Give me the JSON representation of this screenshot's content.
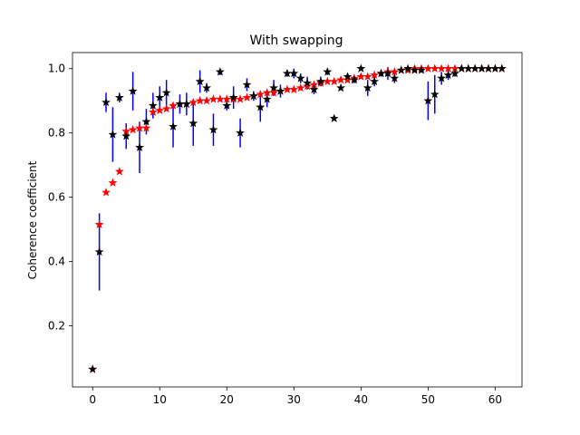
{
  "chart_data": {
    "type": "scatter",
    "title": "With swapping",
    "xlabel": "",
    "ylabel": "Coherence coefficient",
    "xlim": [
      -3,
      64
    ],
    "ylim": [
      0.01,
      1.05
    ],
    "xticks": [
      0,
      10,
      20,
      30,
      40,
      50,
      60
    ],
    "yticks": [
      0.2,
      0.4,
      0.6,
      0.8,
      1.0
    ],
    "ytick_labels": [
      "0.2",
      "0.4",
      "0.6",
      "0.8",
      "1.0"
    ],
    "grid": false,
    "colors": {
      "reference": "#ff0000",
      "measured": "#000000",
      "errorbar": "#0000ff"
    },
    "series": [
      {
        "marker": "star",
        "color": "#ff0000",
        "x": [
          0,
          1,
          2,
          3,
          4,
          5,
          6,
          7,
          8,
          9,
          10,
          11,
          12,
          13,
          14,
          15,
          16,
          17,
          18,
          19,
          20,
          21,
          22,
          23,
          24,
          25,
          26,
          27,
          28,
          29,
          30,
          31,
          32,
          33,
          34,
          35,
          36,
          37,
          38,
          39,
          40,
          41,
          42,
          43,
          44,
          45,
          46,
          47,
          48,
          49,
          50,
          51,
          52,
          53,
          54,
          55,
          56,
          57,
          58,
          59,
          60,
          61
        ],
        "y": [
          0.065,
          0.515,
          0.615,
          0.645,
          0.68,
          0.805,
          0.81,
          0.815,
          0.815,
          0.865,
          0.87,
          0.875,
          0.885,
          0.89,
          0.89,
          0.895,
          0.9,
          0.9,
          0.905,
          0.905,
          0.905,
          0.905,
          0.905,
          0.91,
          0.915,
          0.92,
          0.925,
          0.925,
          0.93,
          0.935,
          0.935,
          0.94,
          0.945,
          0.95,
          0.955,
          0.96,
          0.96,
          0.965,
          0.965,
          0.97,
          0.975,
          0.975,
          0.98,
          0.985,
          0.99,
          0.99,
          0.995,
          0.995,
          1.0,
          1.0,
          1.0,
          1.0,
          1.0,
          1.0,
          1.0,
          1.0,
          1.0,
          1.0,
          1.0,
          1.0,
          1.0,
          1.0
        ]
      },
      {
        "marker": "star",
        "color": "#000000",
        "x": [
          0,
          1,
          2,
          3,
          4,
          5,
          6,
          7,
          8,
          9,
          10,
          11,
          12,
          13,
          14,
          15,
          16,
          17,
          18,
          19,
          20,
          21,
          22,
          23,
          24,
          25,
          26,
          27,
          28,
          29,
          30,
          31,
          32,
          33,
          34,
          35,
          36,
          37,
          38,
          39,
          40,
          41,
          42,
          43,
          44,
          45,
          46,
          47,
          48,
          49,
          50,
          51,
          52,
          53,
          54,
          55,
          56,
          57,
          58,
          59,
          60,
          61
        ],
        "y": [
          0.065,
          0.43,
          0.895,
          0.795,
          0.91,
          0.79,
          0.93,
          0.755,
          0.835,
          0.885,
          0.91,
          0.925,
          0.82,
          0.89,
          0.89,
          0.83,
          0.96,
          0.94,
          0.81,
          0.99,
          0.885,
          0.91,
          0.8,
          0.95,
          0.915,
          0.88,
          0.905,
          0.94,
          0.93,
          0.985,
          0.985,
          0.97,
          0.955,
          0.935,
          0.96,
          0.99,
          0.845,
          0.94,
          0.975,
          0.965,
          1.0,
          0.94,
          0.96,
          0.985,
          0.985,
          0.97,
          0.995,
          1.0,
          0.995,
          0.995,
          0.9,
          0.92,
          0.97,
          0.98,
          0.985,
          1.0,
          1.0,
          1.0,
          1.0,
          1.0,
          1.0,
          1.0
        ],
        "yerr": [
          0.0,
          0.12,
          0.03,
          0.085,
          0.015,
          0.04,
          0.06,
          0.08,
          0.04,
          0.04,
          0.035,
          0.04,
          0.065,
          0.03,
          0.035,
          0.07,
          0.035,
          0.015,
          0.05,
          0.01,
          0.015,
          0.035,
          0.045,
          0.02,
          0.015,
          0.045,
          0.025,
          0.025,
          0.02,
          0.01,
          0.015,
          0.015,
          0.02,
          0.015,
          0.015,
          0.01,
          0.0,
          0.0,
          0.01,
          0.01,
          0.0,
          0.025,
          0.015,
          0.01,
          0.02,
          0.015,
          0.005,
          0.0,
          0.005,
          0.005,
          0.06,
          0.06,
          0.02,
          0.015,
          0.01,
          0.0,
          0.0,
          0.0,
          0.0,
          0.0,
          0.0,
          0.0
        ]
      }
    ]
  }
}
